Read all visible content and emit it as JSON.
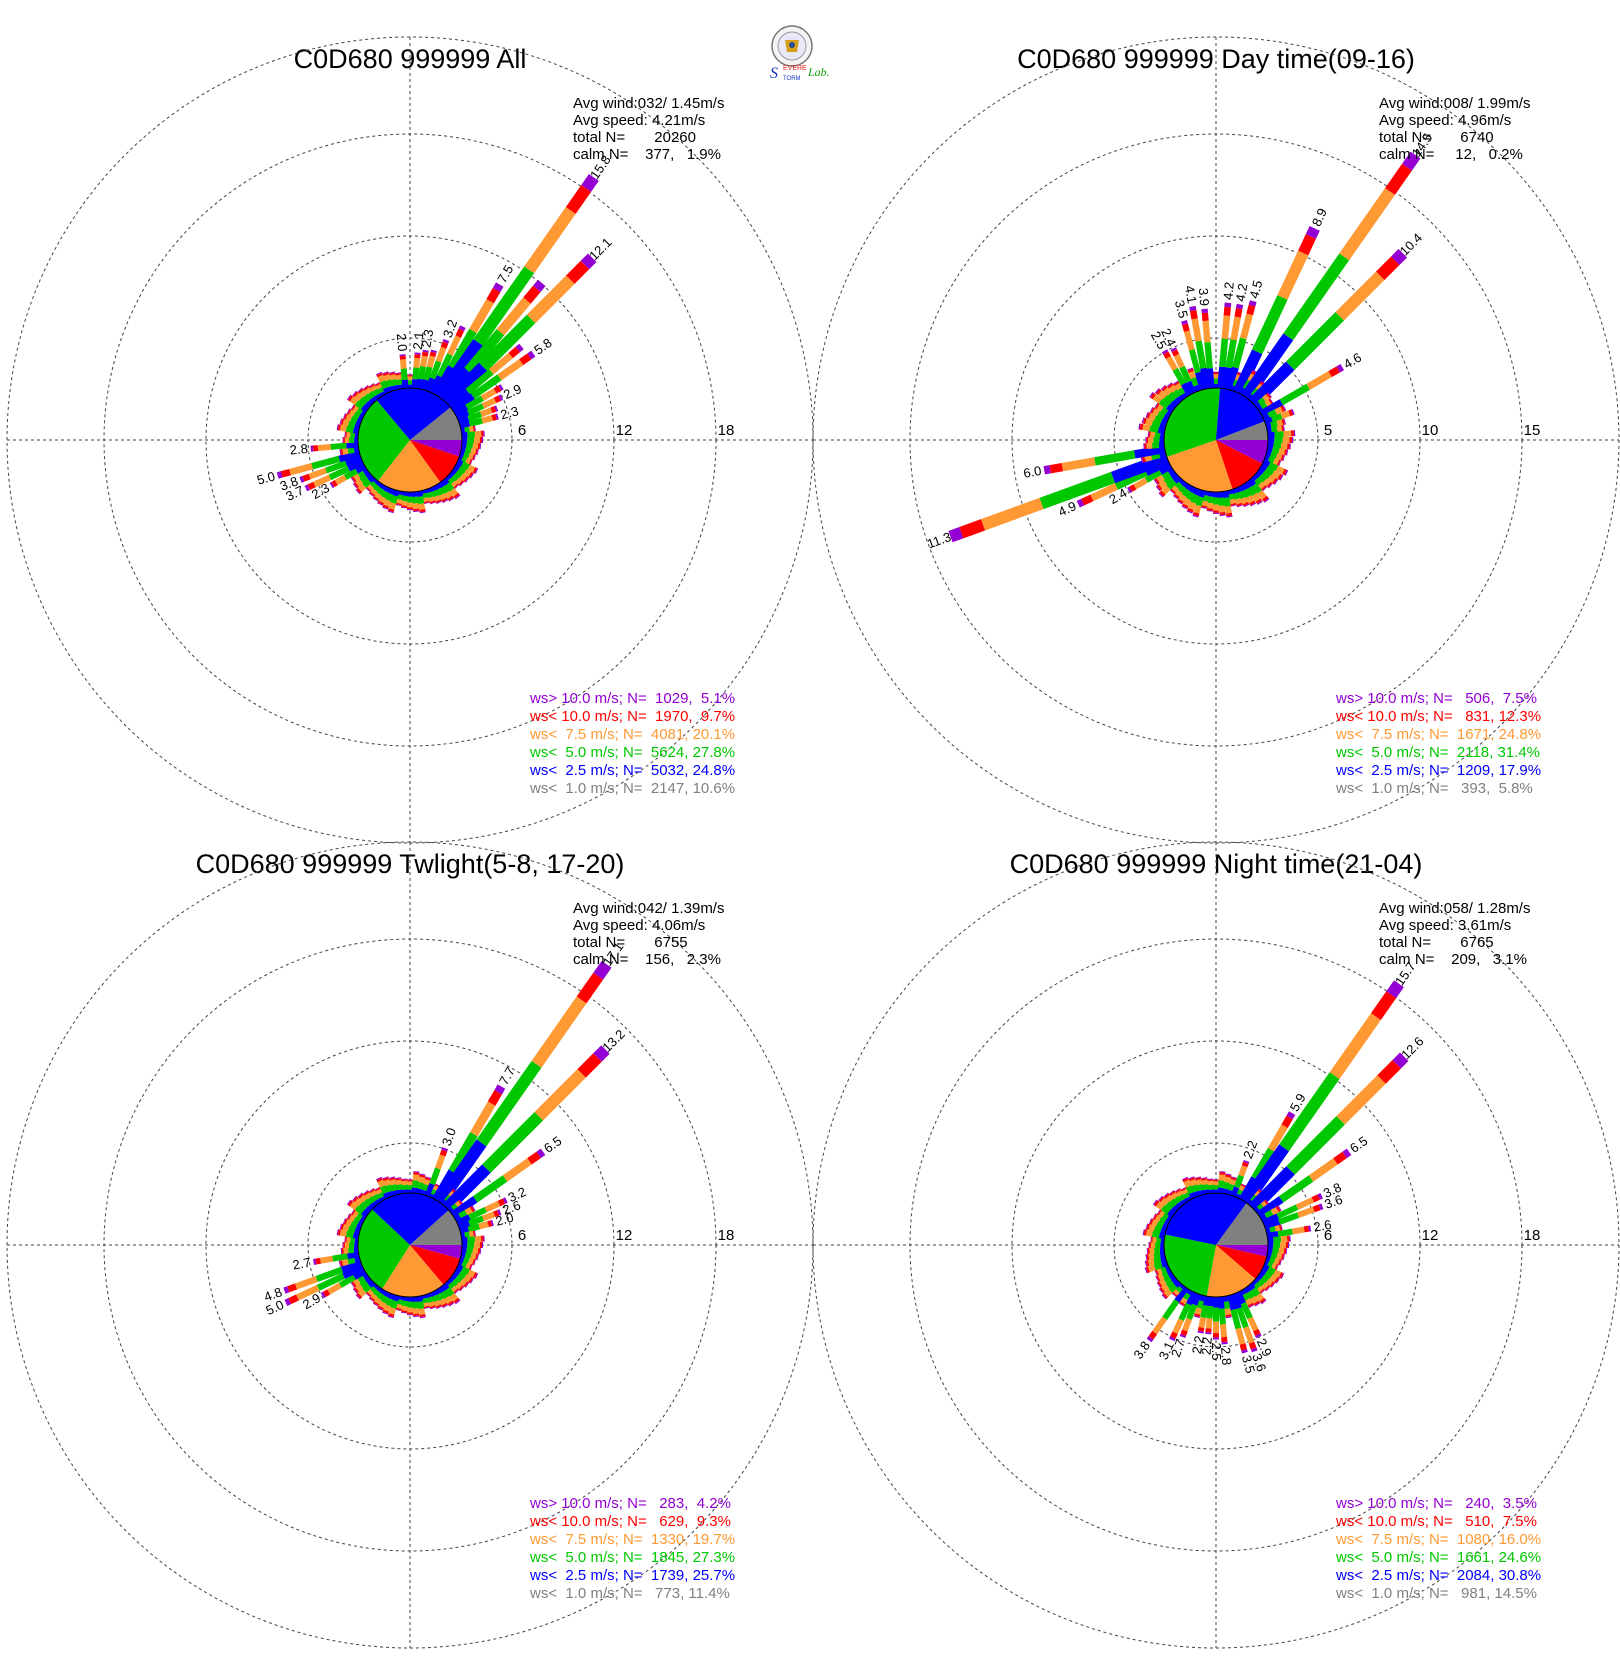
{
  "figure": {
    "logo_text": [
      "S",
      "EVERE",
      "TORM",
      "Lab."
    ]
  },
  "legend_bins": [
    {
      "label": "ws> 10.0 m/s;",
      "color": "#9400d3"
    },
    {
      "label": "ws< 10.0 m/s;",
      "color": "#ff0000"
    },
    {
      "label": "ws<  7.5 m/s;",
      "color": "#ff9933"
    },
    {
      "label": "ws<  5.0 m/s;",
      "color": "#00c800"
    },
    {
      "label": "ws<  2.5 m/s;",
      "color": "#0000ff"
    },
    {
      "label": "ws<  1.0 m/s;",
      "color": "#808080"
    }
  ],
  "chart_data": [
    {
      "type": "wind-rose",
      "title": "C0D680 999999 All",
      "rings": [
        6,
        12,
        18
      ],
      "stats": [
        "Avg wind:032/ 1.45m/s",
        "Avg speed: 4.21m/s",
        "total N=       20260",
        "calm N=    377,   1.9%"
      ],
      "legend_values": [
        "N=  1029,  5.1%",
        "N=  1970,  9.7%",
        "N=  4081, 20.1%",
        "N=  5624, 27.8%",
        "N=  5032, 24.8%",
        "N=  2147, 10.6%"
      ],
      "pie_percent": [
        5.1,
        9.7,
        20.1,
        27.8,
        24.8,
        10.6
      ],
      "petals": [
        {
          "dir": 5,
          "total": 2.1,
          "label": "2.1"
        },
        {
          "dir": 10,
          "total": 2.3,
          "label": "2.3"
        },
        {
          "dir": 15,
          "total": 2.4
        },
        {
          "dir": 20,
          "total": 3.2,
          "label": "3.2"
        },
        {
          "dir": 25,
          "total": 4.3
        },
        {
          "dir": 30,
          "total": 7.5,
          "label": "7.5"
        },
        {
          "dir": 35,
          "total": 15.8,
          "label": "15.8"
        },
        {
          "dir": 40,
          "total": 9.0
        },
        {
          "dir": 45,
          "total": 12.1,
          "label": "12.1"
        },
        {
          "dir": 50,
          "total": 5.5
        },
        {
          "dir": 55,
          "total": 5.8,
          "label": "5.8"
        },
        {
          "dir": 60,
          "total": 3.2
        },
        {
          "dir": 65,
          "total": 2.9,
          "label": "2.9"
        },
        {
          "dir": 70,
          "total": 2.4
        },
        {
          "dir": 75,
          "total": 2.3,
          "label": "2.3"
        },
        {
          "dir": 240,
          "total": 2.3,
          "label": "2.3"
        },
        {
          "dir": 245,
          "total": 3.7,
          "label": "3.7"
        },
        {
          "dir": 250,
          "total": 3.8,
          "label": "3.8"
        },
        {
          "dir": 255,
          "total": 5.0,
          "label": "5.0"
        },
        {
          "dir": 265,
          "total": 2.8,
          "label": "2.8"
        },
        {
          "dir": 355,
          "total": 2.0,
          "label": "2.0"
        }
      ]
    },
    {
      "type": "wind-rose",
      "title": "C0D680 999999 Day time(09-16)",
      "rings": [
        5,
        10,
        15
      ],
      "stats": [
        "Avg wind:008/ 1.99m/s",
        "Avg speed: 4.96m/s",
        "total N=       6740",
        "calm N=     12,   0.2%"
      ],
      "legend_values": [
        "N=   506,  7.5%",
        "N=   831, 12.3%",
        "N=  1671, 24.8%",
        "N=  2118, 31.4%",
        "N=  1209, 17.9%",
        "N=   393,  5.8%"
      ],
      "pie_percent": [
        7.5,
        12.3,
        24.8,
        31.4,
        17.9,
        5.8
      ],
      "petals": [
        {
          "dir": 345,
          "total": 3.5,
          "label": "3.5"
        },
        {
          "dir": 350,
          "total": 4.1,
          "label": "4.1"
        },
        {
          "dir": 355,
          "total": 3.9,
          "label": "3.9"
        },
        {
          "dir": 5,
          "total": 4.2,
          "label": "4.2"
        },
        {
          "dir": 10,
          "total": 4.2,
          "label": "4.2"
        },
        {
          "dir": 15,
          "total": 4.5,
          "label": "4.5"
        },
        {
          "dir": 25,
          "total": 8.9,
          "label": "8.9"
        },
        {
          "dir": 35,
          "total": 14.5,
          "label": "14.5"
        },
        {
          "dir": 45,
          "total": 10.4,
          "label": "10.4"
        },
        {
          "dir": 60,
          "total": 4.6,
          "label": "4.6"
        },
        {
          "dir": 70,
          "total": 1.5
        },
        {
          "dir": 240,
          "total": 2.4,
          "label": "2.4"
        },
        {
          "dir": 245,
          "total": 4.9,
          "label": "4.9"
        },
        {
          "dir": 250,
          "total": 11.3,
          "label": "11.3"
        },
        {
          "dir": 260,
          "total": 6.0,
          "label": "6.0"
        },
        {
          "dir": 330,
          "total": 2.5,
          "label": "2.5"
        },
        {
          "dir": 335,
          "total": 2.4,
          "label": "2.4"
        }
      ]
    },
    {
      "type": "wind-rose",
      "title": "C0D680 999999 Twlight(5-8, 17-20)",
      "rings": [
        6,
        12,
        18
      ],
      "stats": [
        "Avg wind:042/ 1.39m/s",
        "Avg speed: 4.06m/s",
        "total N=       6755",
        "calm N=    156,   2.3%"
      ],
      "legend_values": [
        "N=   283,  4.2%",
        "N=   629,  9.3%",
        "N=  1330, 19.7%",
        "N=  1845, 27.3%",
        "N=  1739, 25.7%",
        "N=   773, 11.4%"
      ],
      "pie_percent": [
        4.2,
        9.3,
        19.7,
        27.3,
        25.7,
        11.4
      ],
      "petals": [
        {
          "dir": 20,
          "total": 3.0,
          "label": "3.0"
        },
        {
          "dir": 30,
          "total": 7.7,
          "label": "7.7"
        },
        {
          "dir": 35,
          "total": 17.1,
          "label": "17.1"
        },
        {
          "dir": 45,
          "total": 13.2,
          "label": "13.2"
        },
        {
          "dir": 55,
          "total": 6.5,
          "label": "6.5"
        },
        {
          "dir": 65,
          "total": 3.2,
          "label": "3.2"
        },
        {
          "dir": 70,
          "total": 2.6,
          "label": "2.6"
        },
        {
          "dir": 75,
          "total": 2.0,
          "label": "2.0"
        },
        {
          "dir": 240,
          "total": 2.9,
          "label": "2.9"
        },
        {
          "dir": 245,
          "total": 5.0,
          "label": "5.0"
        },
        {
          "dir": 250,
          "total": 4.8,
          "label": "4.8"
        },
        {
          "dir": 260,
          "total": 2.7,
          "label": "2.7"
        }
      ]
    },
    {
      "type": "wind-rose",
      "title": "C0D680 999999 Night time(21-04)",
      "rings": [
        6,
        12,
        18
      ],
      "stats": [
        "Avg wind:058/ 1.28m/s",
        "Avg speed: 3.61m/s",
        "total N=       6765",
        "calm N=    209,   3.1%"
      ],
      "legend_values": [
        "N=   240,  3.5%",
        "N=   510,  7.5%",
        "N=  1080, 16.0%",
        "N=  1661, 24.6%",
        "N=  2084, 30.8%",
        "N=   981, 14.5%"
      ],
      "pie_percent": [
        3.5,
        7.5,
        16.0,
        24.6,
        30.8,
        14.5
      ],
      "petals": [
        {
          "dir": 20,
          "total": 2.2,
          "label": "2.2"
        },
        {
          "dir": 30,
          "total": 5.9,
          "label": "5.9"
        },
        {
          "dir": 35,
          "total": 15.7,
          "label": "15.7"
        },
        {
          "dir": 45,
          "total": 12.6,
          "label": "12.6"
        },
        {
          "dir": 55,
          "total": 6.5,
          "label": "6.5"
        },
        {
          "dir": 65,
          "total": 3.8,
          "label": "3.8"
        },
        {
          "dir": 70,
          "total": 3.6,
          "label": "3.6"
        },
        {
          "dir": 80,
          "total": 2.6,
          "label": "2.6"
        },
        {
          "dir": 155,
          "total": 2.9,
          "label": "2.9"
        },
        {
          "dir": 160,
          "total": 3.6,
          "label": "3.6"
        },
        {
          "dir": 165,
          "total": 3.5,
          "label": "3.5"
        },
        {
          "dir": 175,
          "total": 2.8,
          "label": "2.8"
        },
        {
          "dir": 180,
          "total": 2.5,
          "label": "2.5"
        },
        {
          "dir": 185,
          "total": 2.2,
          "label": "2.2"
        },
        {
          "dir": 190,
          "total": 2.2,
          "label": "2.2"
        },
        {
          "dir": 200,
          "total": 2.7,
          "label": "2.7"
        },
        {
          "dir": 205,
          "total": 3.1,
          "label": "3.1"
        },
        {
          "dir": 215,
          "total": 3.8,
          "label": "3.8"
        }
      ]
    }
  ]
}
